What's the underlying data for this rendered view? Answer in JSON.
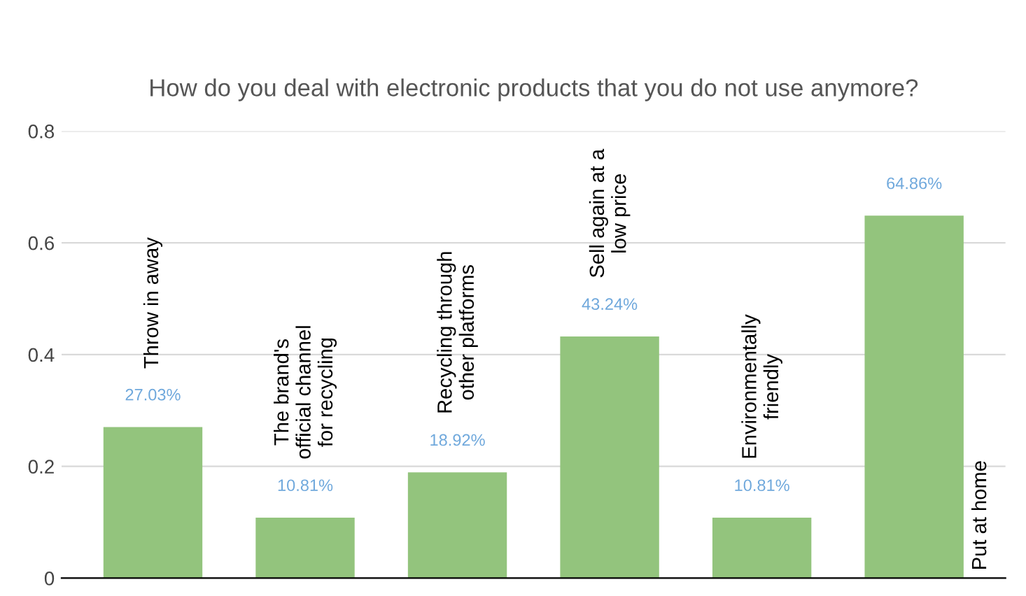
{
  "chart_data": {
    "type": "bar",
    "title": "How do you deal with electronic products that you do not use anymore?",
    "categories": [
      "Throw in away",
      "The brand's\nofficial channel\nfor recycling",
      "Recycling through\nother platforms",
      "Sell again at a\nlow price",
      "Environmentally\nfriendly",
      "Put at home"
    ],
    "values": [
      0.2703,
      0.1081,
      0.1892,
      0.4324,
      0.1081,
      0.6486
    ],
    "value_labels": [
      "27.03%",
      "10.81%",
      "18.92%",
      "43.24%",
      "10.81%",
      "64.86%"
    ],
    "color": "#93c47d",
    "ylim": [
      0,
      0.8
    ],
    "yticks": [
      {
        "value": 0,
        "label": "0"
      },
      0.2,
      0.4,
      0.6,
      0.8
    ],
    "grid": "y"
  }
}
